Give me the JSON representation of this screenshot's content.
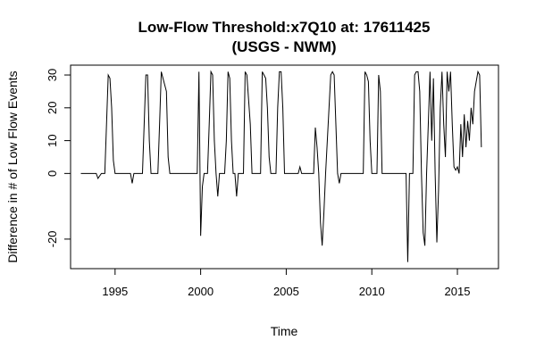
{
  "chart_data": {
    "type": "line",
    "title": "Low-Flow Threshold:x7Q10 at: 17611425",
    "subtitle": "(USGS - NWM)",
    "xlabel": "Time",
    "ylabel": "Difference in # of Low Flow Events",
    "xlim": [
      1992.4,
      2017.4
    ],
    "ylim": [
      -29,
      33
    ],
    "x_ticks": [
      1995,
      2000,
      2005,
      2010,
      2015
    ],
    "y_ticks": [
      -20,
      0,
      10,
      20,
      30
    ],
    "grid": false,
    "series": [
      {
        "points": [
          [
            1993.0,
            0
          ],
          [
            1993.9,
            0
          ],
          [
            1994.0,
            -1.5
          ],
          [
            1994.2,
            0
          ],
          [
            1994.4,
            0
          ],
          [
            1994.5,
            15
          ],
          [
            1994.6,
            30
          ],
          [
            1994.7,
            29
          ],
          [
            1994.8,
            20
          ],
          [
            1994.9,
            4
          ],
          [
            1995.0,
            0
          ],
          [
            1995.9,
            0
          ],
          [
            1996.0,
            -3
          ],
          [
            1996.1,
            0
          ],
          [
            1996.6,
            0
          ],
          [
            1996.7,
            15
          ],
          [
            1996.8,
            30
          ],
          [
            1996.9,
            30
          ],
          [
            1997.0,
            10
          ],
          [
            1997.1,
            0
          ],
          [
            1997.5,
            0
          ],
          [
            1997.6,
            15
          ],
          [
            1997.7,
            31
          ],
          [
            1997.8,
            29
          ],
          [
            1998.0,
            25
          ],
          [
            1998.1,
            5
          ],
          [
            1998.2,
            0
          ],
          [
            1999.8,
            0
          ],
          [
            1999.9,
            31
          ],
          [
            2000.0,
            -19
          ],
          [
            2000.1,
            -4
          ],
          [
            2000.2,
            0
          ],
          [
            2000.4,
            0
          ],
          [
            2000.5,
            15
          ],
          [
            2000.6,
            31
          ],
          [
            2000.7,
            30
          ],
          [
            2000.8,
            10
          ],
          [
            2000.9,
            0
          ],
          [
            2001.0,
            -7
          ],
          [
            2001.1,
            0
          ],
          [
            2001.4,
            0
          ],
          [
            2001.5,
            10
          ],
          [
            2001.6,
            31
          ],
          [
            2001.7,
            29
          ],
          [
            2001.8,
            10
          ],
          [
            2001.9,
            0
          ],
          [
            2002.0,
            0
          ],
          [
            2002.1,
            -7
          ],
          [
            2002.2,
            0
          ],
          [
            2002.5,
            0
          ],
          [
            2002.6,
            31
          ],
          [
            2002.7,
            30
          ],
          [
            2002.9,
            15
          ],
          [
            2003.0,
            0
          ],
          [
            2003.5,
            0
          ],
          [
            2003.6,
            31
          ],
          [
            2003.7,
            30
          ],
          [
            2003.8,
            29
          ],
          [
            2003.9,
            20
          ],
          [
            2004.0,
            5
          ],
          [
            2004.1,
            0
          ],
          [
            2004.4,
            0
          ],
          [
            2004.5,
            20
          ],
          [
            2004.6,
            31
          ],
          [
            2004.7,
            31
          ],
          [
            2004.8,
            20
          ],
          [
            2004.9,
            0
          ],
          [
            2005.7,
            0
          ],
          [
            2005.8,
            2
          ],
          [
            2005.9,
            0
          ],
          [
            2006.6,
            0
          ],
          [
            2006.7,
            14
          ],
          [
            2006.8,
            8
          ],
          [
            2006.9,
            0
          ],
          [
            2007.0,
            -15
          ],
          [
            2007.1,
            -22
          ],
          [
            2007.2,
            -12
          ],
          [
            2007.3,
            0
          ],
          [
            2007.5,
            20
          ],
          [
            2007.6,
            30
          ],
          [
            2007.7,
            31
          ],
          [
            2007.8,
            30
          ],
          [
            2007.9,
            15
          ],
          [
            2008.0,
            0
          ],
          [
            2008.1,
            -3
          ],
          [
            2008.2,
            0
          ],
          [
            2009.5,
            0
          ],
          [
            2009.6,
            31
          ],
          [
            2009.7,
            30
          ],
          [
            2009.8,
            28
          ],
          [
            2009.9,
            10
          ],
          [
            2010.0,
            0
          ],
          [
            2010.3,
            0
          ],
          [
            2010.4,
            30
          ],
          [
            2010.5,
            25
          ],
          [
            2010.6,
            0
          ],
          [
            2012.0,
            0
          ],
          [
            2012.1,
            -27
          ],
          [
            2012.2,
            0
          ],
          [
            2012.4,
            0
          ],
          [
            2012.5,
            30
          ],
          [
            2012.6,
            31
          ],
          [
            2012.7,
            31
          ],
          [
            2012.8,
            25
          ],
          [
            2012.9,
            0
          ],
          [
            2013.0,
            -18
          ],
          [
            2013.1,
            -22
          ],
          [
            2013.2,
            0
          ],
          [
            2013.3,
            15
          ],
          [
            2013.4,
            31
          ],
          [
            2013.5,
            10
          ],
          [
            2013.6,
            29
          ],
          [
            2013.7,
            0
          ],
          [
            2013.8,
            -21
          ],
          [
            2013.9,
            -5
          ],
          [
            2014.0,
            20
          ],
          [
            2014.1,
            31
          ],
          [
            2014.2,
            15
          ],
          [
            2014.3,
            5
          ],
          [
            2014.4,
            31
          ],
          [
            2014.5,
            25
          ],
          [
            2014.6,
            31
          ],
          [
            2014.7,
            15
          ],
          [
            2014.8,
            2
          ],
          [
            2014.9,
            1
          ],
          [
            2015.0,
            2
          ],
          [
            2015.1,
            0
          ],
          [
            2015.2,
            15
          ],
          [
            2015.3,
            5
          ],
          [
            2015.4,
            18
          ],
          [
            2015.5,
            8
          ],
          [
            2015.6,
            16
          ],
          [
            2015.7,
            10
          ],
          [
            2015.8,
            20
          ],
          [
            2015.9,
            15
          ],
          [
            2016.0,
            25
          ],
          [
            2016.1,
            28
          ],
          [
            2016.2,
            31
          ],
          [
            2016.3,
            30
          ],
          [
            2016.4,
            8
          ]
        ]
      }
    ]
  }
}
